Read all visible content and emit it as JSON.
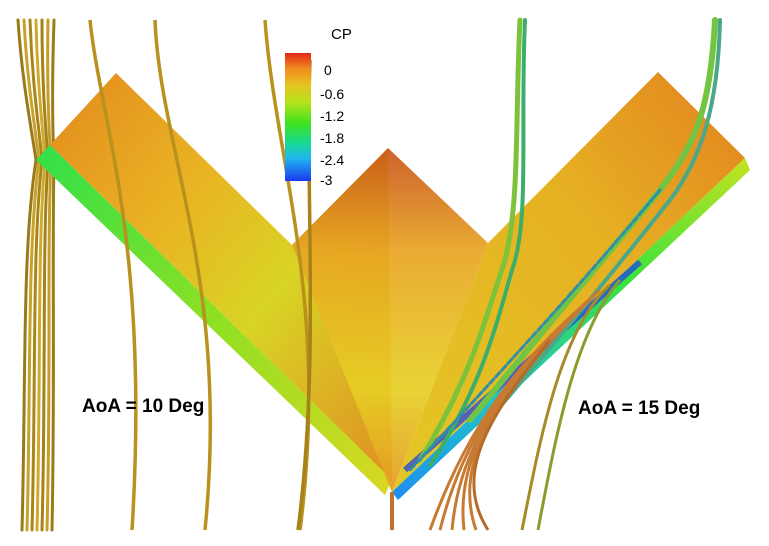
{
  "colorbar": {
    "title": "CP",
    "ticks": [
      "0",
      "-0.6",
      "-1.2",
      "-1.8",
      "-2.4",
      "-3"
    ],
    "colors": [
      "#e2271a",
      "#f08a1c",
      "#e8c020",
      "#b9e21c",
      "#3fe21e",
      "#18d890",
      "#1fb8ee",
      "#1a3af0"
    ]
  },
  "labels": {
    "left": "AoA = 10 Deg",
    "right": "AoA = 15 Deg"
  }
}
